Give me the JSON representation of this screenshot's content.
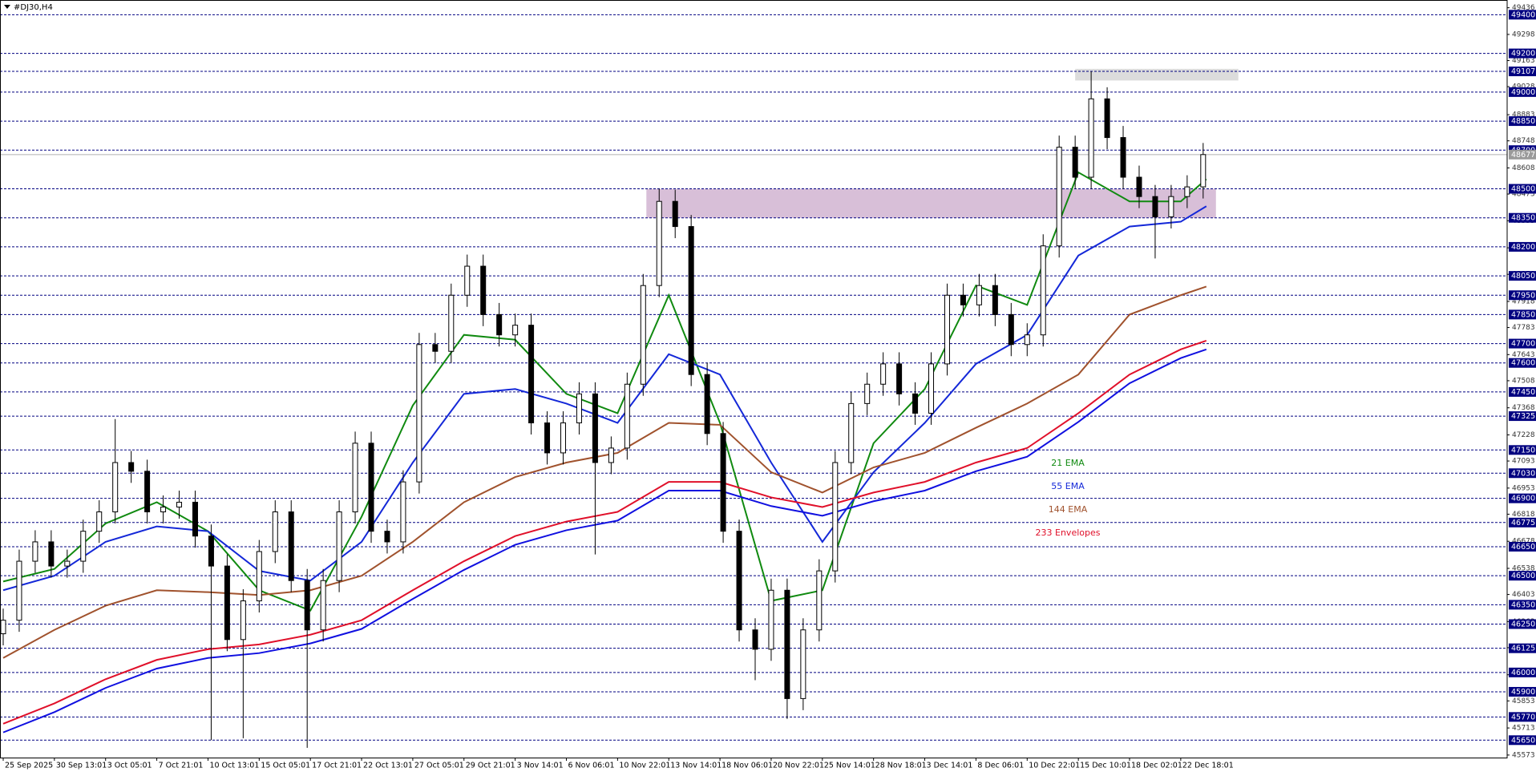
{
  "chart_data": {
    "type": "candlestick",
    "title": "#DJ30,H4",
    "xlim": [
      -1,
      470
    ],
    "ylim": [
      45560,
      49476
    ],
    "xticks": [
      {
        "value": 0,
        "label": "25 Sep 2025"
      },
      {
        "value": 16,
        "label": "30 Sep 13:01"
      },
      {
        "value": 32,
        "label": "3 Oct 05:01"
      },
      {
        "value": 48,
        "label": "7 Oct 21:01"
      },
      {
        "value": 64,
        "label": "10 Oct 13:01"
      },
      {
        "value": 80,
        "label": "15 Oct 05:01"
      },
      {
        "value": 96,
        "label": "17 Oct 21:01"
      },
      {
        "value": 112,
        "label": "22 Oct 13:01"
      },
      {
        "value": 128,
        "label": "27 Oct 05:01"
      },
      {
        "value": 144,
        "label": "29 Oct 21:01"
      },
      {
        "value": 160,
        "label": "3 Nov 14:01"
      },
      {
        "value": 176,
        "label": "6 Nov 06:01"
      },
      {
        "value": 192,
        "label": "10 Nov 22:01"
      },
      {
        "value": 208,
        "label": "13 Nov 14:01"
      },
      {
        "value": 224,
        "label": "18 Nov 06:01"
      },
      {
        "value": 240,
        "label": "20 Nov 22:01"
      },
      {
        "value": 256,
        "label": "25 Nov 14:01"
      },
      {
        "value": 272,
        "label": "28 Nov 18:01"
      },
      {
        "value": 288,
        "label": "3 Dec 14:01"
      },
      {
        "value": 304,
        "label": "8 Dec 06:01"
      },
      {
        "value": 320,
        "label": "10 Dec 22:01"
      },
      {
        "value": 336,
        "label": "15 Dec 10:01"
      },
      {
        "value": 352,
        "label": "18 Dec 02:01"
      },
      {
        "value": 368,
        "label": "22 Dec 18:01"
      }
    ],
    "yticks": [
      49436,
      49298,
      49163,
      49028,
      48883,
      48748,
      48608,
      48473,
      48335,
      48195,
      48058,
      47918,
      47783,
      47643,
      47508,
      47368,
      47228,
      47093,
      46953,
      46818,
      46678,
      46538,
      46403,
      46263,
      46128,
      45988,
      45853,
      45713,
      45573
    ],
    "levels": [
      49400,
      49200,
      49107,
      49000,
      48850,
      48700,
      48500,
      48350,
      48200,
      48050,
      47950,
      47850,
      47700,
      47600,
      47450,
      47325,
      47150,
      47030,
      46900,
      46775,
      46650,
      46500,
      46350,
      46250,
      46125,
      46000,
      45900,
      45770,
      45650
    ],
    "level_color": "#000080",
    "last_price": 48677,
    "zones": [
      {
        "color": "#d8bfd8",
        "xrange": [
          201,
          379
        ],
        "yrange": [
          48350,
          48500
        ]
      },
      {
        "color": "#dcdcdc",
        "xrange": [
          335,
          386
        ],
        "yrange": [
          49060,
          49120
        ]
      }
    ],
    "candles": {
      "x": [
        0,
        5,
        10,
        15,
        20,
        25,
        30,
        35,
        40,
        45,
        50,
        55,
        60,
        65,
        70,
        75,
        80,
        85,
        90,
        95,
        100,
        105,
        110,
        115,
        120,
        125,
        130,
        135,
        140,
        145,
        150,
        155,
        160,
        165,
        170,
        175,
        180,
        185,
        190,
        195,
        200,
        205,
        210,
        215,
        220,
        225,
        230,
        235,
        240,
        245,
        250,
        255,
        260,
        265,
        270,
        275,
        280,
        285,
        290,
        295,
        300,
        305,
        310,
        315,
        320,
        325,
        330,
        335,
        340,
        345,
        350,
        355,
        360,
        365,
        370,
        375
      ],
      "open": [
        46200,
        46270,
        46575,
        46675,
        46550,
        46575,
        46730,
        46830,
        47085,
        47040,
        46830,
        46855,
        46880,
        46705,
        46550,
        46170,
        46370,
        46625,
        46830,
        46475,
        46220,
        46475,
        46830,
        47185,
        46730,
        46675,
        46985,
        47695,
        47660,
        47950,
        48100,
        47850,
        47745,
        47795,
        47290,
        47135,
        47290,
        47440,
        47085,
        47160,
        47490,
        48000,
        48435,
        48305,
        47540,
        47235,
        46730,
        46220,
        46120,
        46425,
        45865,
        46220,
        46525,
        47085,
        47390,
        47490,
        47595,
        47440,
        47340,
        47595,
        47950,
        47900,
        48000,
        47850,
        47695,
        47745,
        48205,
        48715,
        48560,
        48965,
        48765,
        48560,
        48460,
        48355,
        48460,
        48510
      ],
      "high": [
        46330,
        46635,
        46735,
        46735,
        46635,
        46790,
        46890,
        47310,
        47145,
        47100,
        46915,
        46940,
        46940,
        46765,
        46610,
        46430,
        46685,
        46890,
        46890,
        46535,
        46535,
        46890,
        47245,
        47245,
        46790,
        47045,
        47755,
        47755,
        48010,
        48160,
        48160,
        47910,
        47855,
        47855,
        47350,
        47350,
        47500,
        47500,
        47220,
        47550,
        48060,
        48500,
        48495,
        48365,
        47600,
        47295,
        46790,
        46280,
        46485,
        46485,
        46280,
        46585,
        47145,
        47450,
        47550,
        47655,
        47655,
        47500,
        47655,
        48010,
        48010,
        48060,
        48060,
        47910,
        47805,
        48265,
        48775,
        48775,
        49107,
        49025,
        48825,
        48620,
        48520,
        48520,
        48570,
        48737
      ],
      "low": [
        46140,
        46210,
        46515,
        46490,
        46490,
        46515,
        46670,
        46770,
        46980,
        46770,
        46770,
        46795,
        46645,
        45650,
        46110,
        45660,
        46310,
        46565,
        46415,
        45610,
        46160,
        46415,
        46770,
        46670,
        46615,
        46615,
        46925,
        47600,
        47600,
        47890,
        47790,
        47685,
        47685,
        47230,
        47075,
        47075,
        47230,
        46610,
        47025,
        47100,
        47430,
        47940,
        48245,
        47480,
        47175,
        46670,
        46160,
        45960,
        46060,
        45760,
        45805,
        46160,
        46465,
        47025,
        47330,
        47430,
        47380,
        47280,
        47280,
        47535,
        47840,
        47840,
        47790,
        47635,
        47635,
        47685,
        48145,
        48500,
        48500,
        48705,
        48500,
        48400,
        48140,
        48295,
        48400,
        48450
      ],
      "close": [
        46270,
        46575,
        46675,
        46550,
        46575,
        46730,
        46830,
        47085,
        47040,
        46830,
        46855,
        46880,
        46705,
        46550,
        46170,
        46370,
        46625,
        46830,
        46475,
        46220,
        46475,
        46830,
        47185,
        46730,
        46675,
        46985,
        47695,
        47660,
        47950,
        48100,
        47850,
        47745,
        47795,
        47290,
        47135,
        47290,
        47440,
        47085,
        47160,
        47490,
        48000,
        48435,
        48305,
        47540,
        47235,
        46730,
        46220,
        46120,
        46425,
        45865,
        46220,
        46525,
        47085,
        47390,
        47490,
        47595,
        47440,
        47340,
        47595,
        47950,
        47900,
        48000,
        47850,
        47695,
        47745,
        48205,
        48715,
        48560,
        48965,
        48765,
        48560,
        48460,
        48355,
        48460,
        48510,
        48677
      ],
      "up_color": "#ffffff",
      "down_color": "#000000"
    },
    "x": [
      0,
      16,
      32,
      48,
      64,
      80,
      96,
      112,
      128,
      144,
      160,
      176,
      192,
      208,
      224,
      240,
      256,
      272,
      288,
      304,
      320,
      336,
      352,
      368,
      376
    ],
    "series": [
      {
        "name": "21 EMA",
        "color": "#108a10",
        "values": [
          46470,
          46535,
          46770,
          46880,
          46730,
          46425,
          46320,
          46805,
          47380,
          47745,
          47720,
          47440,
          47340,
          47950,
          47290,
          46370,
          46425,
          47185,
          47465,
          48000,
          47900,
          48585,
          48435,
          48435,
          48550
        ]
      },
      {
        "name": "55 EMA",
        "color": "#1428d8",
        "values": [
          46425,
          46500,
          46675,
          46755,
          46730,
          46525,
          46475,
          46675,
          47085,
          47440,
          47465,
          47390,
          47290,
          47645,
          47540,
          47085,
          46675,
          47035,
          47290,
          47595,
          47745,
          48155,
          48305,
          48330,
          48410
        ]
      },
      {
        "name": "144 EMA",
        "color": "#a0522d",
        "values": [
          46075,
          46220,
          46345,
          46425,
          46415,
          46400,
          46425,
          46500,
          46675,
          46880,
          47010,
          47085,
          47135,
          47290,
          47280,
          47035,
          46930,
          47060,
          47135,
          47265,
          47390,
          47540,
          47850,
          47950,
          47995
        ]
      },
      {
        "name": "233 Envelopes",
        "color": "#e0102a",
        "values": [
          45735,
          45840,
          45965,
          46065,
          46120,
          46145,
          46195,
          46270,
          46425,
          46575,
          46705,
          46780,
          46830,
          46985,
          46985,
          46905,
          46855,
          46930,
          46985,
          47085,
          47160,
          47340,
          47540,
          47670,
          47715
        ],
        "lower": [
          45690,
          45795,
          45920,
          46020,
          46075,
          46100,
          46150,
          46225,
          46380,
          46530,
          46660,
          46735,
          46785,
          46940,
          46940,
          46860,
          46810,
          46885,
          46940,
          47040,
          47115,
          47295,
          47495,
          47625,
          47670
        ],
        "lower_color": "#1010e0"
      }
    ]
  }
}
